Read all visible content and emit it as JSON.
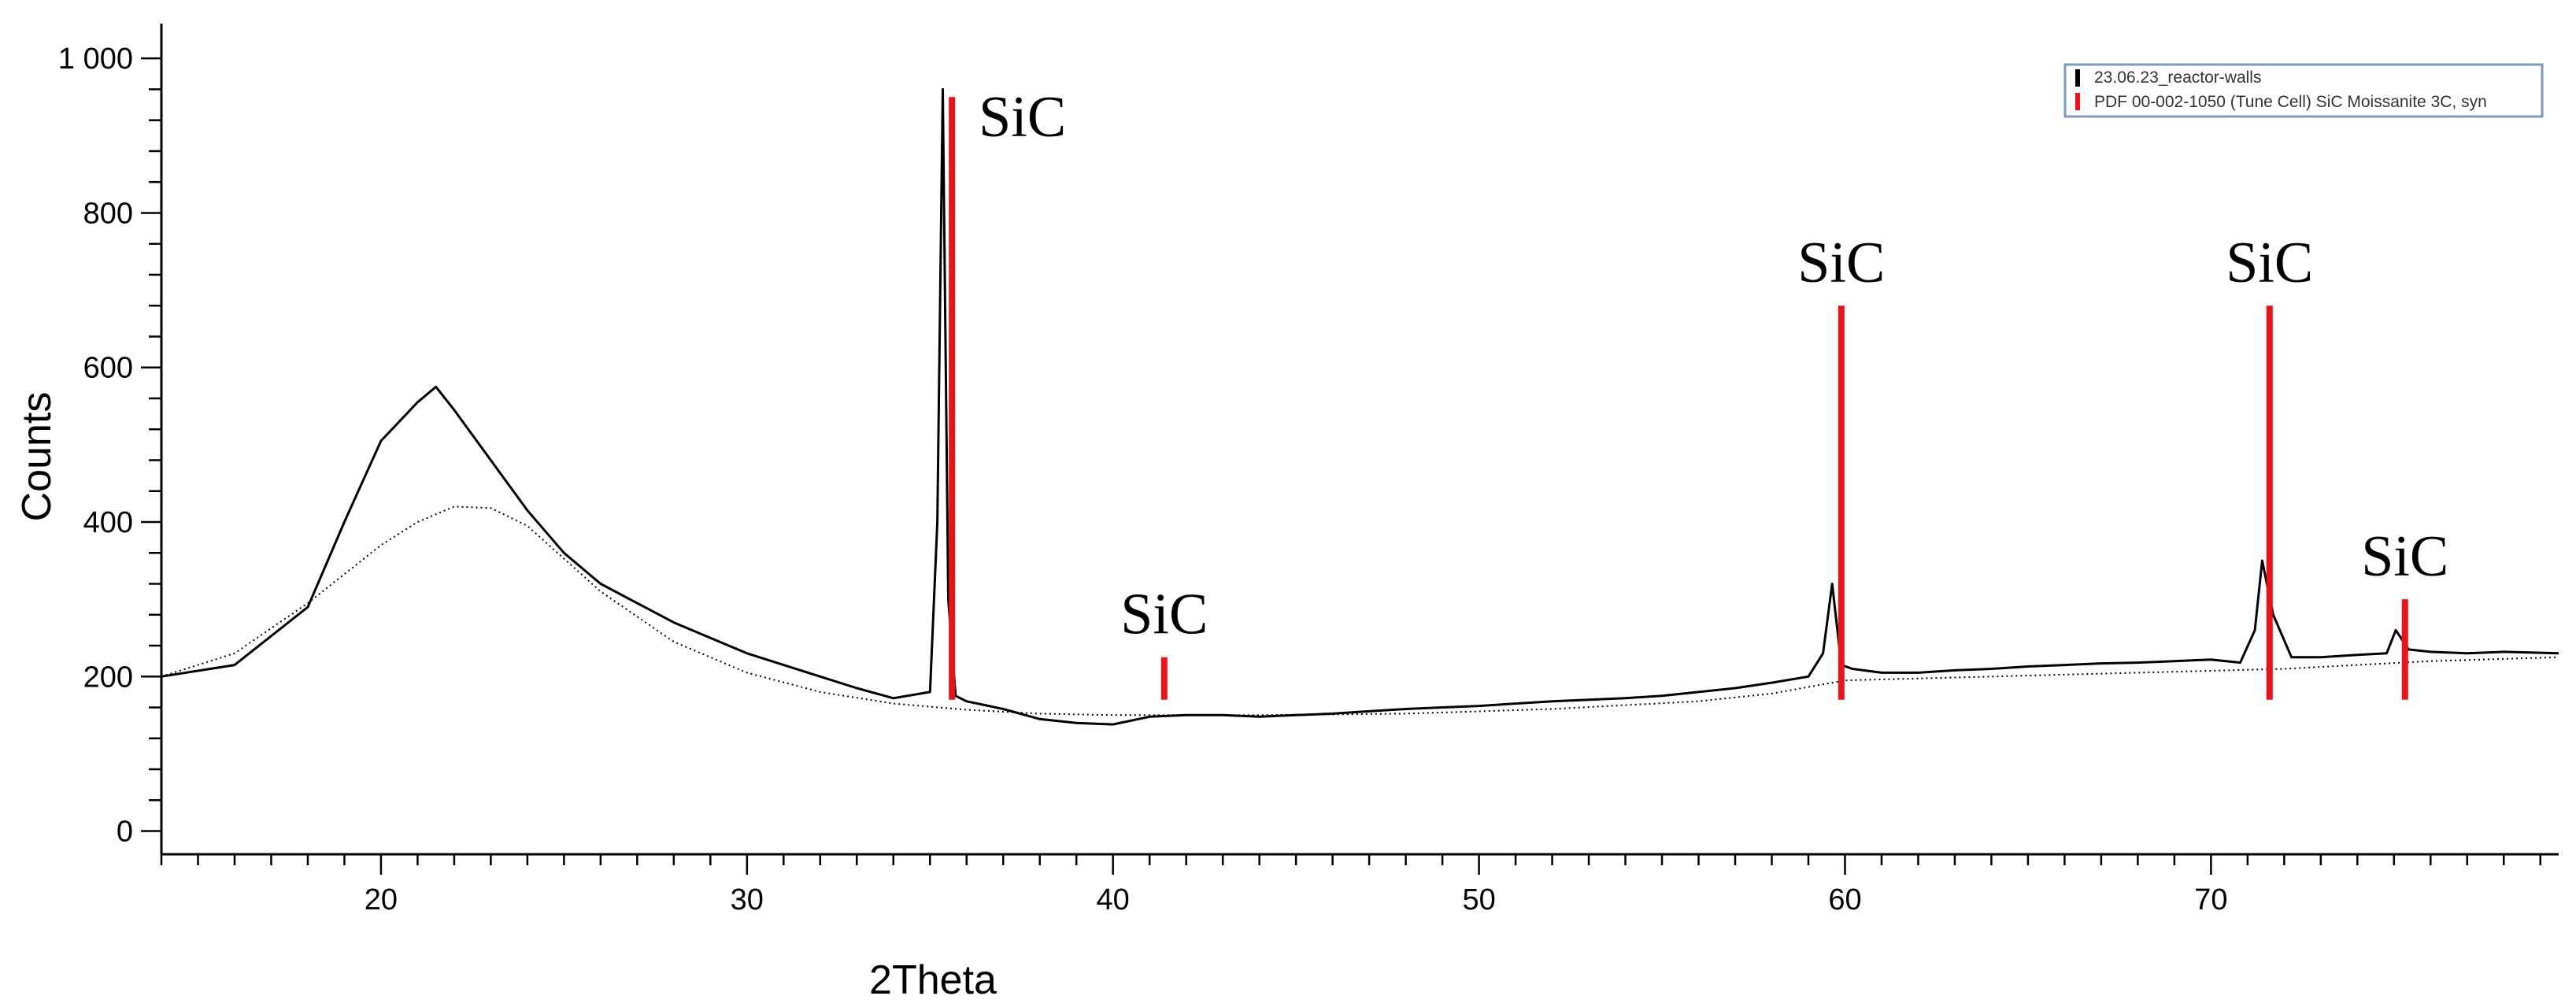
{
  "chart_data": {
    "type": "line",
    "xlabel": "2Theta",
    "ylabel": "Counts",
    "xlim": [
      14,
      79.5
    ],
    "ylim": [
      -30,
      1045
    ],
    "x_ticks": [
      20,
      30,
      40,
      50,
      60,
      70
    ],
    "x_tick_labels": [
      "20",
      "30",
      "40",
      "50",
      "60",
      "70"
    ],
    "y_ticks": [
      0,
      200,
      400,
      600,
      800,
      1000
    ],
    "y_tick_labels": [
      "0",
      "200",
      "400",
      "600",
      "800",
      "1 000"
    ],
    "grid": false,
    "legend_position": "top-right",
    "colors": {
      "pattern": "#000000",
      "reference": "#e8131b",
      "legend_border": "#7a9ab8"
    },
    "legend": [
      {
        "label": "23.06.23_reactor-walls",
        "color": "#000000"
      },
      {
        "label": "PDF 00-002-1050 (Tune Cell) SiC Moissanite 3C, syn",
        "color": "#e8131b"
      }
    ],
    "series": [
      {
        "name": "23.06.23_reactor-walls",
        "x": [
          14,
          16,
          18,
          19,
          20,
          21,
          21.5,
          22,
          23,
          24,
          25,
          26,
          28,
          30,
          32,
          33,
          34,
          35,
          35.2,
          35.35,
          35.5,
          35.7,
          36,
          37,
          38,
          39,
          40,
          41,
          42,
          43,
          44,
          45,
          46,
          47,
          48,
          49,
          50,
          51,
          52,
          53,
          54,
          55,
          56,
          57,
          58,
          59,
          59.4,
          59.65,
          59.9,
          60.2,
          61,
          62,
          63,
          64,
          65,
          66,
          67,
          68,
          69,
          70,
          70.8,
          71.2,
          71.4,
          71.7,
          72.2,
          73,
          74,
          74.8,
          75.05,
          75.4,
          76,
          77,
          78,
          79.5
        ],
        "y": [
          200,
          215,
          290,
          400,
          505,
          555,
          575,
          545,
          480,
          415,
          360,
          320,
          270,
          230,
          200,
          185,
          172,
          180,
          400,
          960,
          300,
          175,
          168,
          158,
          145,
          140,
          138,
          148,
          150,
          150,
          148,
          150,
          152,
          155,
          158,
          160,
          162,
          165,
          168,
          170,
          172,
          175,
          180,
          185,
          192,
          200,
          230,
          320,
          215,
          210,
          205,
          205,
          208,
          210,
          213,
          215,
          217,
          218,
          220,
          222,
          218,
          260,
          350,
          280,
          225,
          225,
          228,
          230,
          260,
          235,
          232,
          230,
          232,
          230
        ]
      },
      {
        "name": "background",
        "x": [
          14,
          16,
          18,
          20,
          21,
          22,
          23,
          24,
          26,
          28,
          30,
          32,
          34,
          36,
          38,
          40,
          44,
          48,
          52,
          56,
          58,
          60,
          64,
          68,
          72,
          74,
          76,
          79.5
        ],
        "y": [
          200,
          230,
          295,
          370,
          400,
          420,
          418,
          395,
          310,
          245,
          205,
          180,
          165,
          157,
          152,
          150,
          150,
          152,
          158,
          168,
          178,
          195,
          200,
          205,
          210,
          215,
          220,
          225
        ]
      }
    ],
    "reference_peaks": [
      {
        "x": 35.6,
        "intensity": 950,
        "label": "SiC"
      },
      {
        "x": 41.4,
        "intensity": 225,
        "label": "SiC"
      },
      {
        "x": 59.9,
        "intensity": 680,
        "label": "SiC"
      },
      {
        "x": 71.6,
        "intensity": 680,
        "label": "SiC"
      },
      {
        "x": 75.3,
        "intensity": 300,
        "label": "SiC"
      }
    ]
  }
}
